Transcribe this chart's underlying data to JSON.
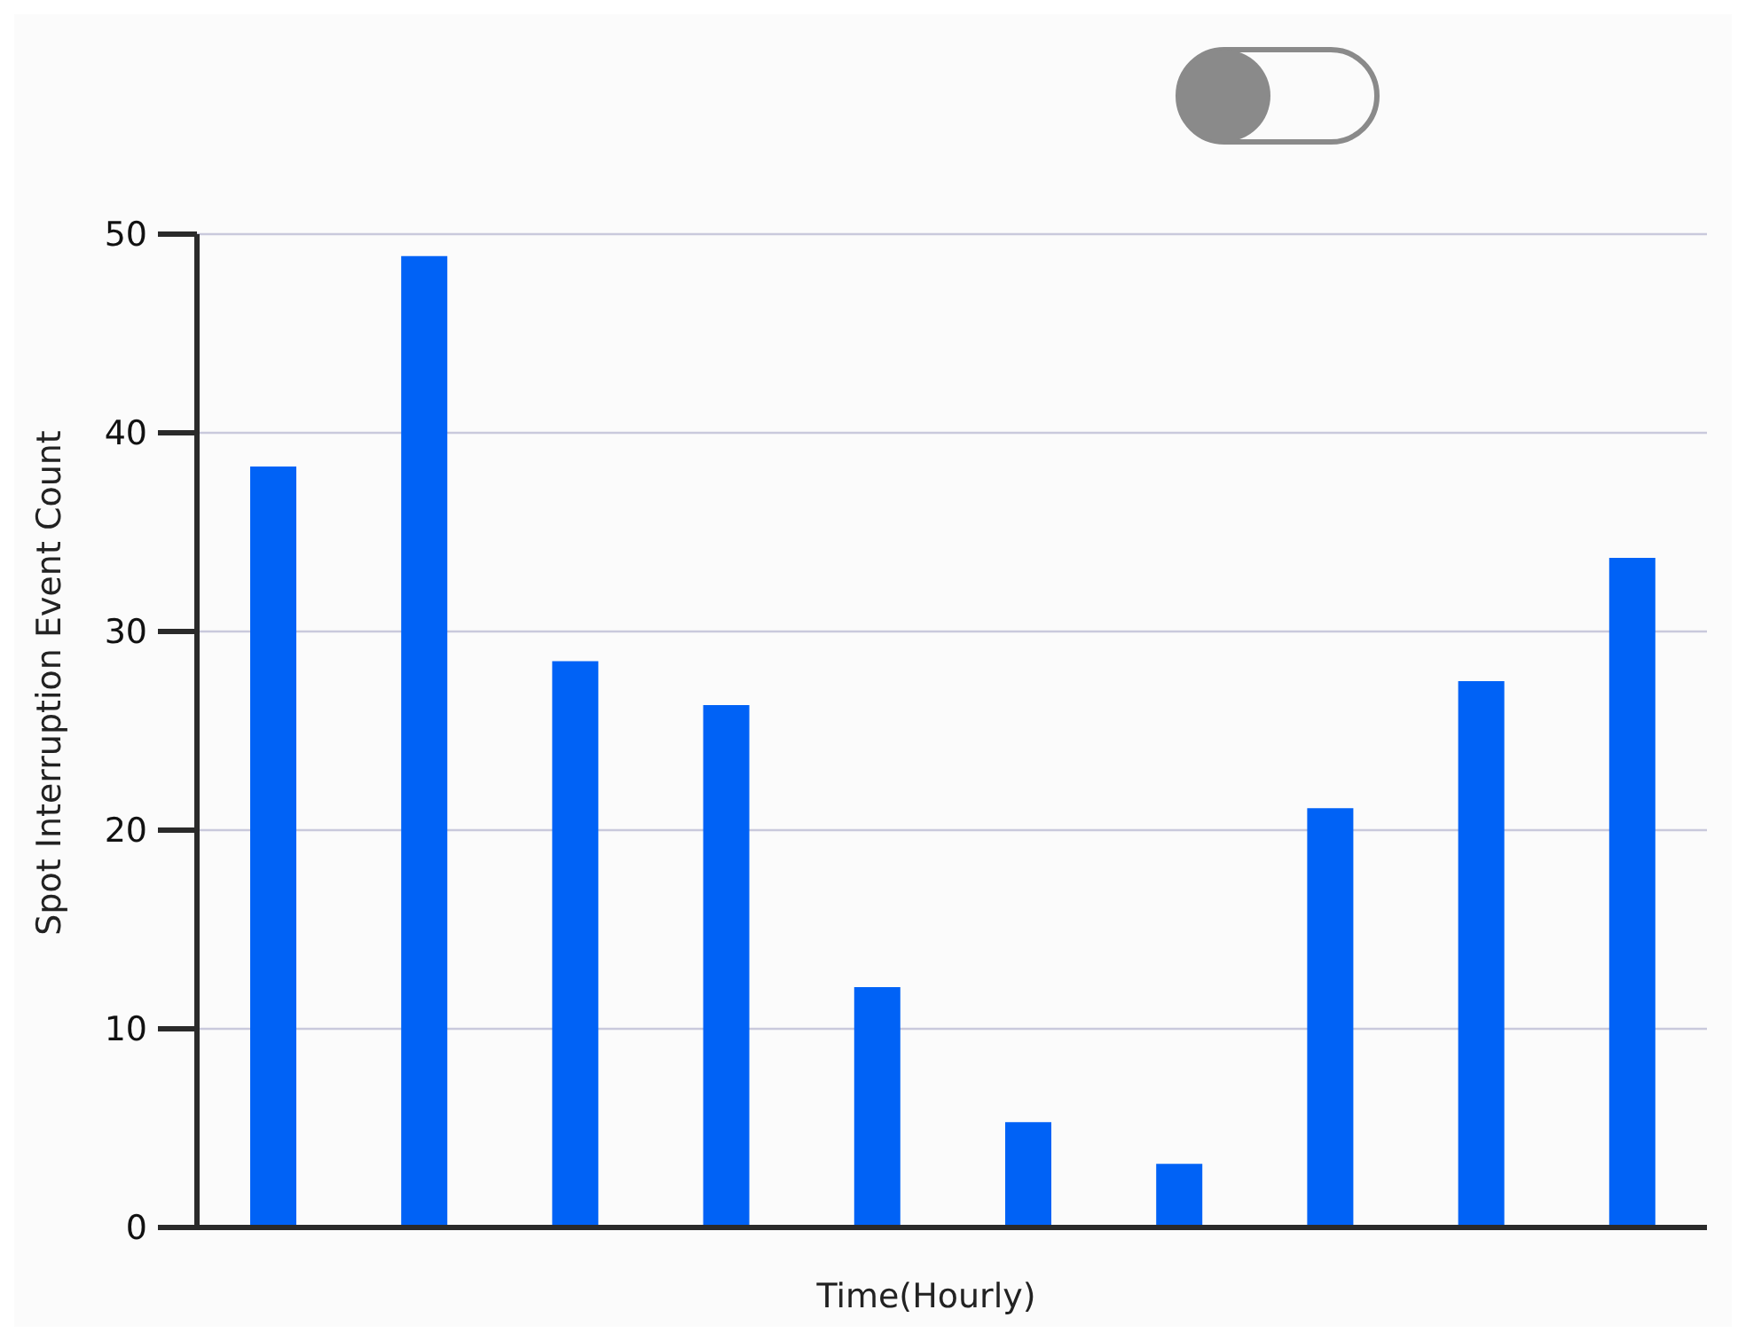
{
  "chart_data": {
    "type": "bar",
    "xlabel": "Time(Hourly)",
    "ylabel": "Spot Interruption Event Count",
    "categories": [
      null,
      null,
      null,
      null,
      null,
      null,
      null,
      null,
      null,
      null
    ],
    "values": [
      38.3,
      48.9,
      28.5,
      26.3,
      12.1,
      5.3,
      3.2,
      21.1,
      27.5,
      33.7
    ],
    "color": "#0062f6",
    "ylim": [
      0,
      50
    ],
    "yticks": [
      0,
      10,
      20,
      30,
      40,
      50
    ],
    "grid": "y",
    "tick_labels": "y"
  }
}
